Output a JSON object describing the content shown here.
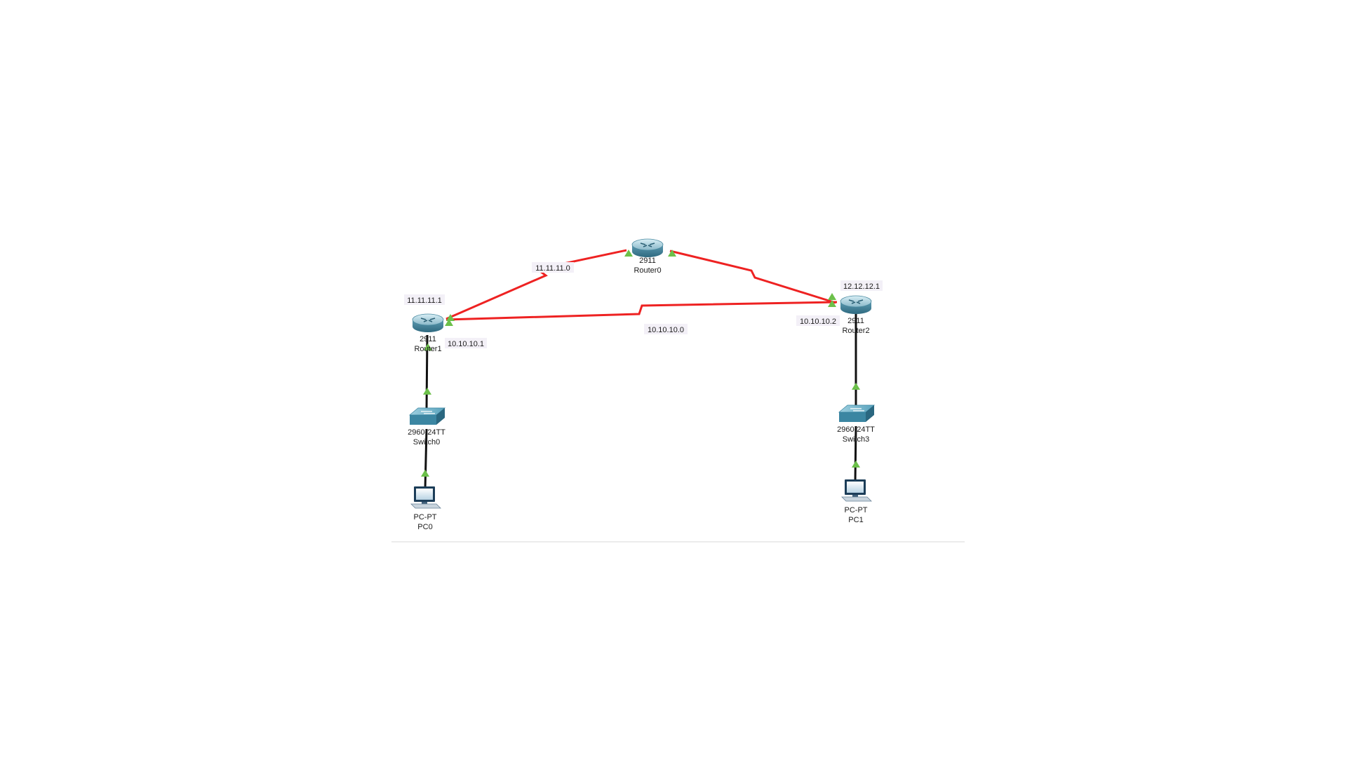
{
  "diagram": {
    "devices": [
      {
        "id": "router0",
        "kind": "router",
        "model": "2911",
        "name": "Router0"
      },
      {
        "id": "router1",
        "kind": "router",
        "model": "2911",
        "name": "Router1"
      },
      {
        "id": "router2",
        "kind": "router",
        "model": "2911",
        "name": "Router2"
      },
      {
        "id": "switch0",
        "kind": "switch",
        "model": "2960-24TT",
        "name": "Switch0"
      },
      {
        "id": "switch3",
        "kind": "switch",
        "model": "2960-24TT",
        "name": "Switch3"
      },
      {
        "id": "pc0",
        "kind": "pc",
        "model": "PC-PT",
        "name": "PC0"
      },
      {
        "id": "pc1",
        "kind": "pc",
        "model": "PC-PT",
        "name": "PC1"
      }
    ],
    "links": [
      {
        "from": "router1",
        "to": "router0",
        "type": "serial",
        "color": "#ee2222"
      },
      {
        "from": "router0",
        "to": "router2",
        "type": "serial",
        "color": "#ee2222"
      },
      {
        "from": "router1",
        "to": "router2",
        "type": "serial",
        "color": "#ee2222"
      },
      {
        "from": "router1",
        "to": "switch0",
        "type": "ethernet",
        "color": "#111111"
      },
      {
        "from": "switch0",
        "to": "pc0",
        "type": "ethernet",
        "color": "#111111"
      },
      {
        "from": "router2",
        "to": "switch3",
        "type": "ethernet",
        "color": "#111111"
      },
      {
        "from": "switch3",
        "to": "pc1",
        "type": "ethernet",
        "color": "#111111"
      }
    ],
    "ip_labels": {
      "net_r1_r0": "11.11.11.0",
      "r1_addr": "11.11.11.1",
      "r1_if_addr": "10.10.10.1",
      "net_r1_r2": "10.10.10.0",
      "r2_if_addr": "10.10.10.2",
      "r2_addr": "12.12.12.1"
    },
    "colors": {
      "serial_link": "#ee2222",
      "ethernet_link": "#111111",
      "link_up_indicator": "#6cc04a",
      "device_body": "#4f8fa6"
    }
  }
}
